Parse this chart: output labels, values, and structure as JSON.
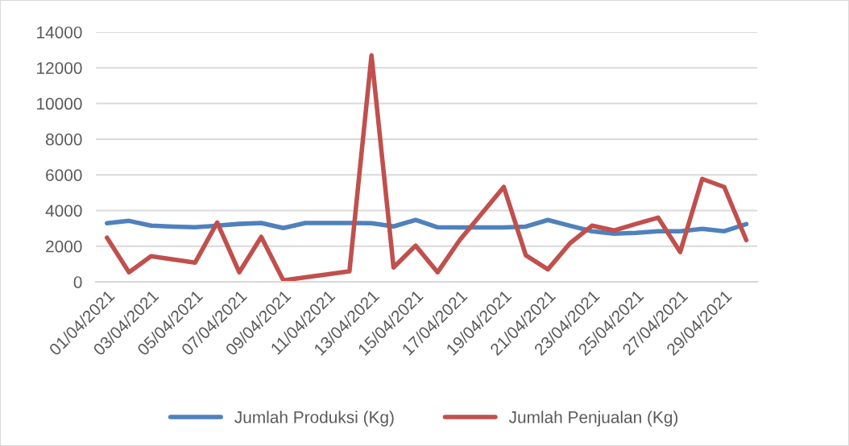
{
  "chart_data": {
    "type": "line",
    "categories": [
      "01/04/2021",
      null,
      "03/04/2021",
      null,
      "05/04/2021",
      null,
      "07/04/2021",
      null,
      "09/04/2021",
      null,
      "11/04/2021",
      null,
      "13/04/2021",
      null,
      "15/04/2021",
      null,
      "17/04/2021",
      null,
      "19/04/2021",
      null,
      "21/04/2021",
      null,
      "23/04/2021",
      null,
      "25/04/2021",
      null,
      "27/04/2021",
      null,
      "29/04/2021",
      null
    ],
    "series": [
      {
        "name": "Jumlah Produksi (Kg)",
        "color": "#4f81bd",
        "values": [
          3290,
          3420,
          3150,
          3100,
          3060,
          3150,
          3250,
          3300,
          3020,
          3300,
          3300,
          3300,
          3290,
          3110,
          3470,
          3060,
          3050,
          3050,
          3050,
          3100,
          3470,
          3150,
          2840,
          2700,
          2750,
          2840,
          2840,
          2970,
          2840,
          3240
        ]
      },
      {
        "name": "Jumlah Penjualan (Kg)",
        "color": "#c0504d",
        "values": [
          2480,
          540,
          1440,
          1260,
          1080,
          3330,
          540,
          2520,
          90,
          250,
          420,
          590,
          12700,
          810,
          2030,
          540,
          2340,
          3830,
          5320,
          1490,
          700,
          2160,
          3150,
          2880,
          3250,
          3600,
          1670,
          5770,
          5320,
          2340
        ]
      }
    ],
    "ylim": [
      0,
      14000
    ],
    "yticks": [
      0,
      2000,
      4000,
      6000,
      8000,
      10000,
      12000,
      14000
    ],
    "grid": "y",
    "legend": "bottom",
    "marker": "none",
    "line_style": "solid"
  }
}
